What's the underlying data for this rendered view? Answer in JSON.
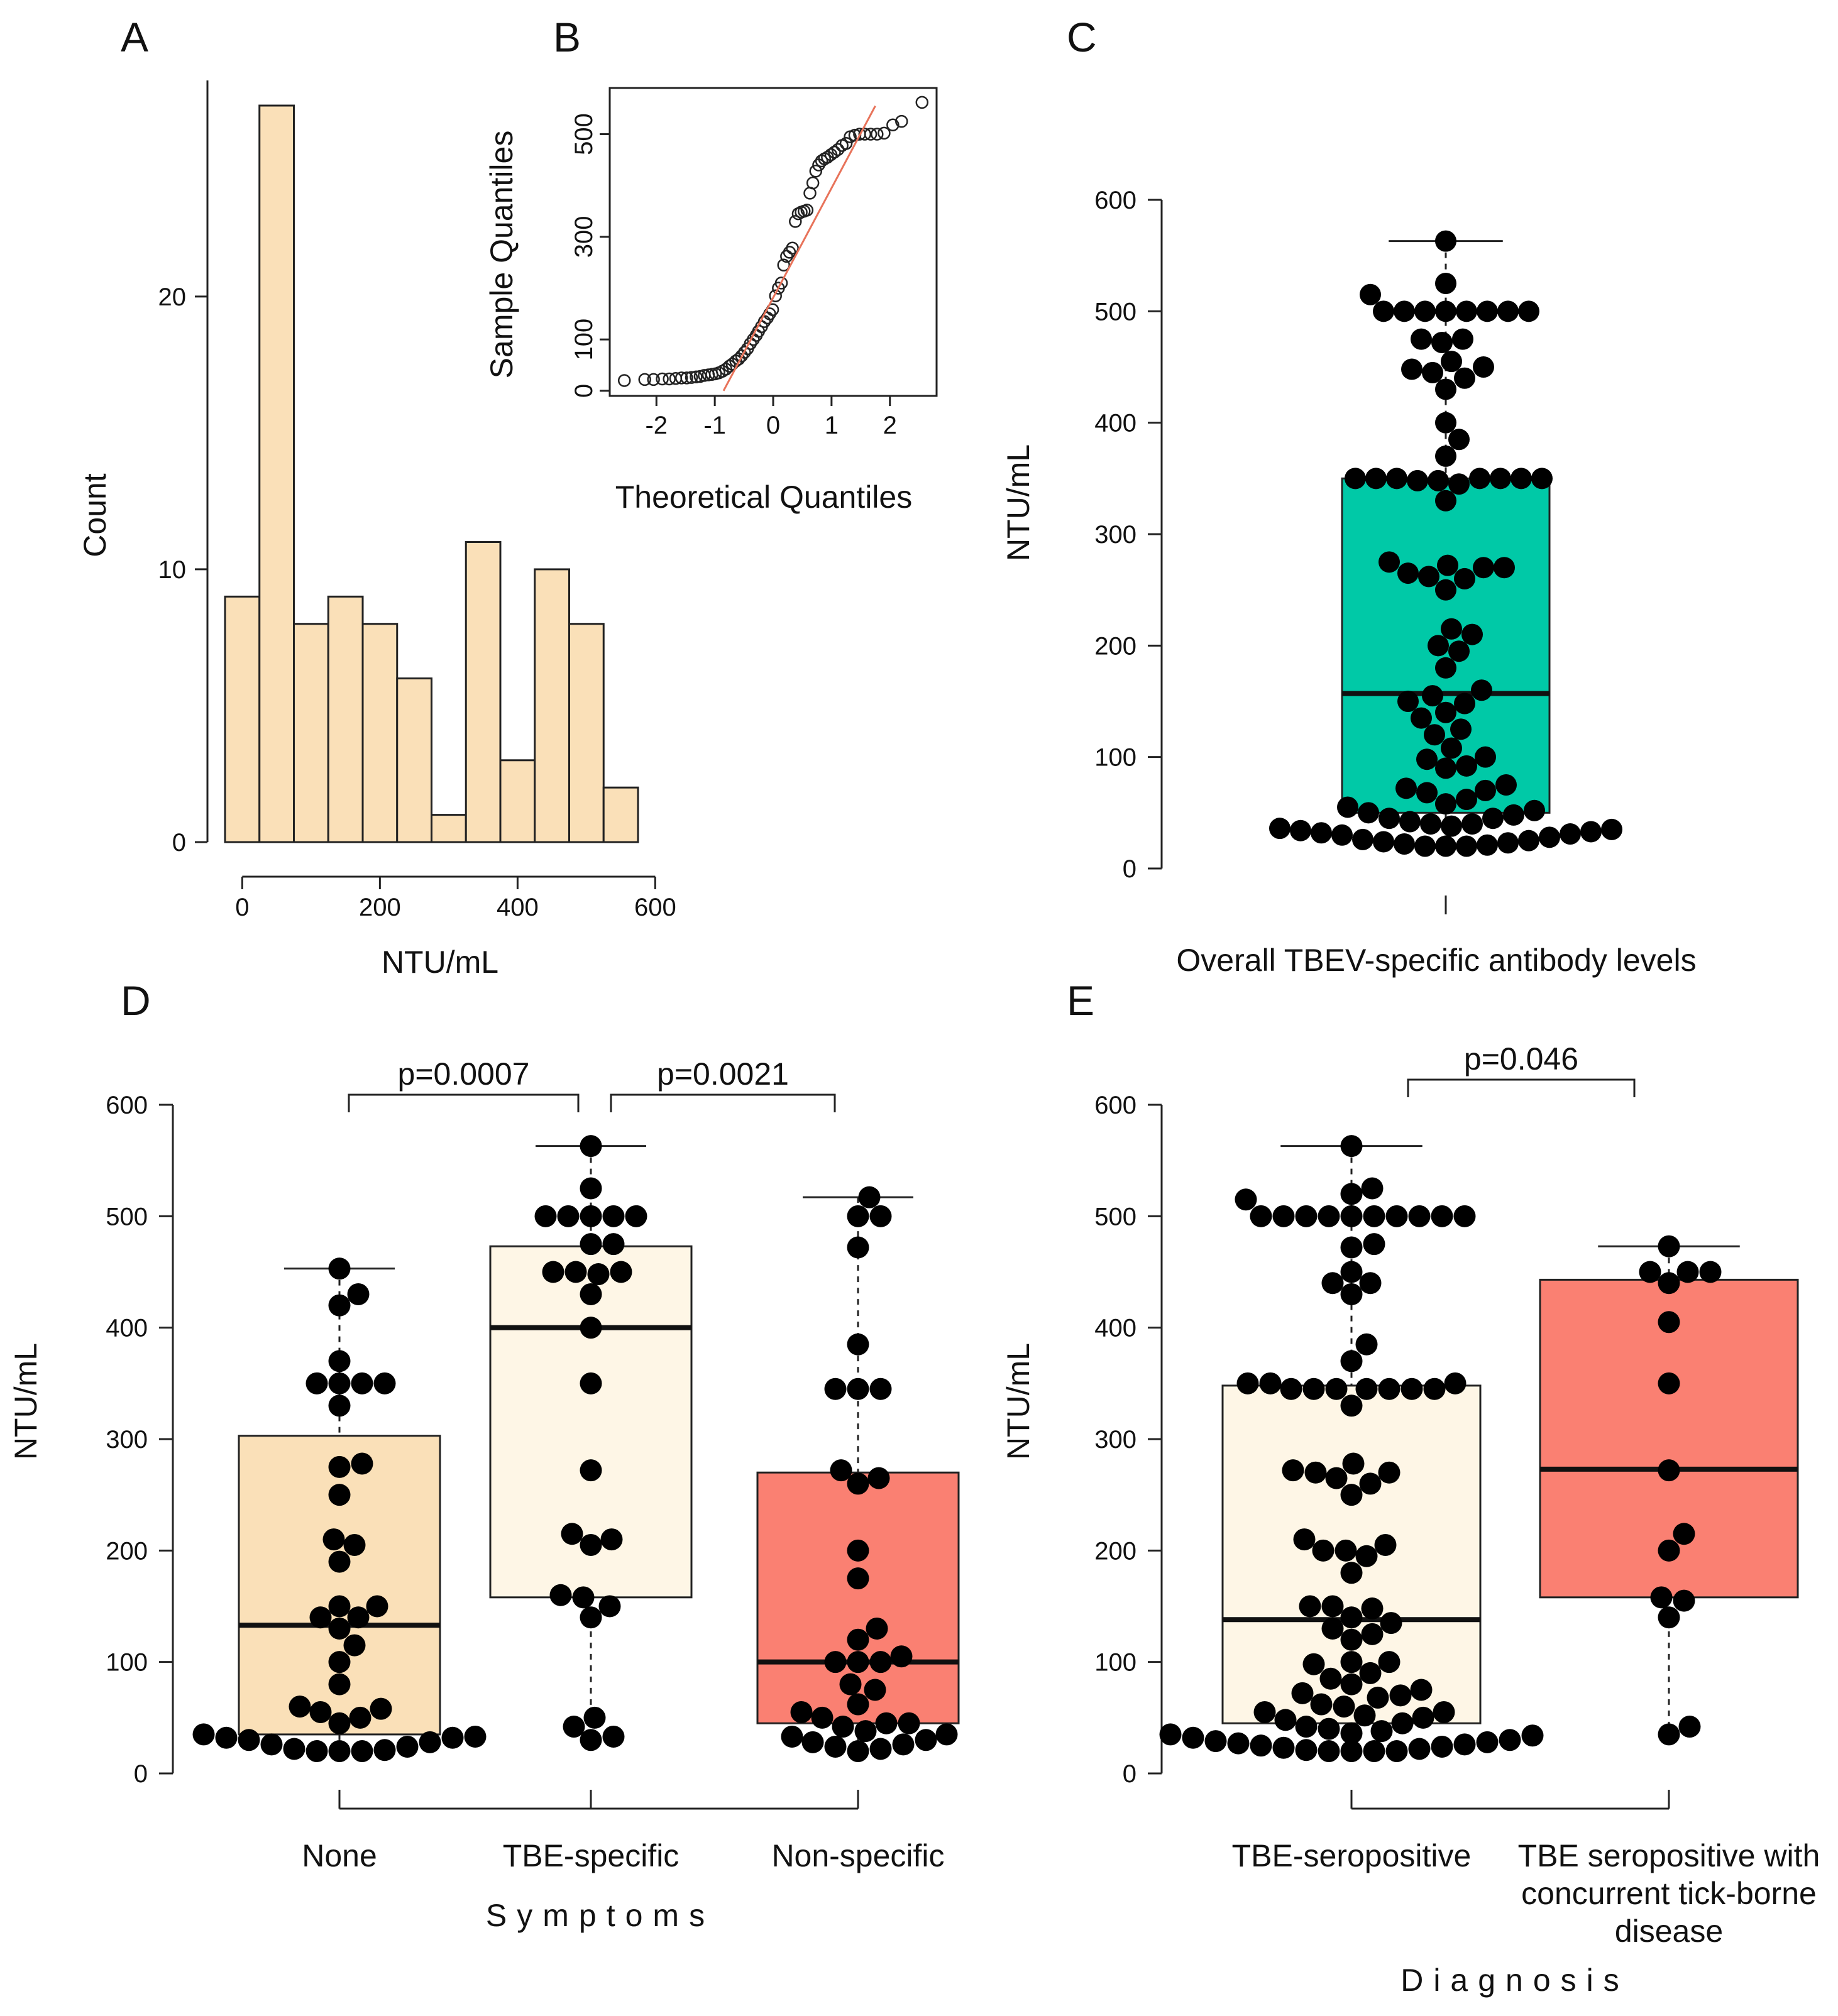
{
  "chart_data": [
    {
      "panel": "A",
      "type": "bar",
      "subtype": "histogram",
      "xlabel": "NTU/mL",
      "ylabel": "Count",
      "xlim": [
        -25,
        575
      ],
      "ylim": [
        0,
        27
      ],
      "xticks": [
        0,
        200,
        400,
        600
      ],
      "yticks": [
        0,
        10,
        20
      ],
      "bin_edges": [
        -25,
        25,
        75,
        125,
        175,
        225,
        275,
        325,
        375,
        425,
        475,
        525,
        575
      ],
      "values": [
        9,
        27,
        8,
        9,
        8,
        6,
        1,
        11,
        3,
        10,
        8,
        2
      ],
      "colors": {
        "fill": "#FAE0B8",
        "stroke": "#222222"
      }
    },
    {
      "panel": "B",
      "type": "scatter",
      "subtype": "qq-plot",
      "xlabel": "Theoretical Quantiles",
      "ylabel": "Sample Quantiles",
      "xlim": [
        -2.8,
        2.8
      ],
      "ylim": [
        -10,
        590
      ],
      "xticks": [
        -2,
        -1,
        0,
        1,
        2
      ],
      "yticks": [
        0,
        100,
        300,
        500
      ],
      "reference_line": {
        "x": [
          -0.85,
          1.75
        ],
        "y": [
          0,
          555
        ]
      },
      "points": [
        [
          -2.55,
          20
        ],
        [
          -2.2,
          22
        ],
        [
          -2.05,
          22
        ],
        [
          -1.9,
          23
        ],
        [
          -1.78,
          23
        ],
        [
          -1.67,
          24
        ],
        [
          -1.57,
          25
        ],
        [
          -1.48,
          25
        ],
        [
          -1.4,
          26
        ],
        [
          -1.32,
          27
        ],
        [
          -1.25,
          28
        ],
        [
          -1.18,
          30
        ],
        [
          -1.11,
          31
        ],
        [
          -1.05,
          32
        ],
        [
          -0.99,
          33
        ],
        [
          -0.93,
          35
        ],
        [
          -0.87,
          38
        ],
        [
          -0.81,
          42
        ],
        [
          -0.75,
          48
        ],
        [
          -0.7,
          52
        ],
        [
          -0.64,
          58
        ],
        [
          -0.59,
          62
        ],
        [
          -0.54,
          68
        ],
        [
          -0.49,
          75
        ],
        [
          -0.44,
          82
        ],
        [
          -0.39,
          92
        ],
        [
          -0.34,
          100
        ],
        [
          -0.29,
          108
        ],
        [
          -0.25,
          116
        ],
        [
          -0.2,
          125
        ],
        [
          -0.15,
          135
        ],
        [
          -0.1,
          142
        ],
        [
          -0.06,
          150
        ],
        [
          -0.01,
          158
        ],
        [
          0.04,
          185
        ],
        [
          0.09,
          200
        ],
        [
          0.14,
          210
        ],
        [
          0.18,
          245
        ],
        [
          0.23,
          262
        ],
        [
          0.28,
          270
        ],
        [
          0.33,
          278
        ],
        [
          0.38,
          330
        ],
        [
          0.43,
          345
        ],
        [
          0.48,
          348
        ],
        [
          0.53,
          350
        ],
        [
          0.58,
          352
        ],
        [
          0.63,
          385
        ],
        [
          0.68,
          405
        ],
        [
          0.73,
          428
        ],
        [
          0.78,
          440
        ],
        [
          0.83,
          448
        ],
        [
          0.88,
          452
        ],
        [
          0.93,
          455
        ],
        [
          0.99,
          460
        ],
        [
          1.05,
          465
        ],
        [
          1.11,
          470
        ],
        [
          1.18,
          478
        ],
        [
          1.25,
          482
        ],
        [
          1.32,
          495
        ],
        [
          1.4,
          498
        ],
        [
          1.48,
          500
        ],
        [
          1.57,
          500
        ],
        [
          1.67,
          500
        ],
        [
          1.78,
          500
        ],
        [
          1.9,
          502
        ],
        [
          2.05,
          518
        ],
        [
          2.2,
          525
        ],
        [
          2.55,
          562
        ]
      ],
      "colors": {
        "points": "#222222",
        "line": "#E8735A"
      }
    },
    {
      "panel": "C",
      "type": "box",
      "ylabel": "NTU/mL",
      "xlabel": "Overall TBEV-specific antibody levels",
      "ylim": [
        0,
        600
      ],
      "yticks": [
        0,
        100,
        200,
        300,
        400,
        500,
        600
      ],
      "groups": [
        {
          "name": "Overall TBEV-specific antibody levels",
          "box": {
            "q1": 50,
            "median": 157,
            "q3": 350,
            "whisker_low": 20,
            "whisker_high": 563
          },
          "fill": "#00C9A7",
          "points": [
            563,
            525,
            515,
            500,
            500,
            500,
            500,
            500,
            500,
            500,
            500,
            475,
            475,
            472,
            455,
            450,
            448,
            445,
            440,
            430,
            400,
            385,
            370,
            350,
            350,
            350,
            350,
            350,
            350,
            350,
            348,
            348,
            345,
            330,
            275,
            272,
            270,
            270,
            265,
            262,
            260,
            250,
            215,
            210,
            200,
            195,
            180,
            160,
            155,
            150,
            148,
            140,
            135,
            125,
            120,
            108,
            100,
            98,
            92,
            90,
            75,
            72,
            70,
            68,
            62,
            58,
            55,
            52,
            50,
            48,
            45,
            45,
            42,
            40,
            40,
            38,
            36,
            35,
            34,
            33,
            32,
            31,
            30,
            28,
            26,
            25,
            24,
            23,
            22,
            21,
            20,
            20,
            20
          ]
        }
      ]
    },
    {
      "panel": "D",
      "type": "box",
      "ylabel": "NTU/mL",
      "xlabel": "Symptoms",
      "ylim": [
        0,
        600
      ],
      "yticks": [
        0,
        100,
        200,
        300,
        400,
        500,
        600
      ],
      "comparisons": [
        {
          "from": "None",
          "to": "TBE-specific",
          "label": "p=0.0007"
        },
        {
          "from": "TBE-specific",
          "to": "Non-specific",
          "label": "p=0.0021"
        }
      ],
      "groups": [
        {
          "name": "None",
          "box": {
            "q1": 35,
            "median": 133,
            "q3": 303,
            "whisker_low": 20,
            "whisker_high": 453
          },
          "fill": "#FAE0B8",
          "points": [
            453,
            430,
            420,
            370,
            350,
            350,
            350,
            350,
            330,
            278,
            275,
            250,
            210,
            205,
            190,
            150,
            150,
            140,
            140,
            130,
            115,
            100,
            80,
            60,
            58,
            55,
            50,
            45,
            35,
            33,
            32,
            32,
            30,
            28,
            26,
            24,
            22,
            21,
            20,
            20,
            20
          ]
        },
        {
          "name": "TBE-specific",
          "box": {
            "q1": 158,
            "median": 400,
            "q3": 473,
            "whisker_low": 30,
            "whisker_high": 563
          },
          "fill": "#FEF6E6",
          "points": [
            563,
            525,
            500,
            500,
            500,
            500,
            500,
            475,
            475,
            450,
            450,
            450,
            448,
            430,
            400,
            350,
            272,
            215,
            210,
            205,
            160,
            158,
            150,
            140,
            50,
            42,
            33,
            30
          ]
        },
        {
          "name": "Non-specific",
          "box": {
            "q1": 45,
            "median": 100,
            "q3": 270,
            "whisker_low": 20,
            "whisker_high": 517
          },
          "fill": "#FA8072",
          "points": [
            517,
            500,
            500,
            472,
            385,
            345,
            345,
            345,
            272,
            265,
            260,
            200,
            175,
            130,
            120,
            105,
            100,
            100,
            100,
            80,
            75,
            62,
            55,
            50,
            45,
            45,
            42,
            38,
            35,
            33,
            30,
            28,
            26,
            24,
            22,
            20
          ]
        }
      ]
    },
    {
      "panel": "E",
      "type": "box",
      "ylabel": "NTU/mL",
      "xlabel": "Diagnosis",
      "ylim": [
        0,
        600
      ],
      "yticks": [
        0,
        100,
        200,
        300,
        400,
        500,
        600
      ],
      "comparisons": [
        {
          "from": "TBE-seropositive",
          "to": "TBE seropositive with concurrent tick-borne disease",
          "label": "p=0.046"
        }
      ],
      "groups": [
        {
          "name": "TBE-seropositive",
          "box": {
            "q1": 45,
            "median": 138,
            "q3": 348,
            "whisker_low": 20,
            "whisker_high": 563
          },
          "fill": "#FEF6E6",
          "points": [
            563,
            525,
            520,
            515,
            500,
            500,
            500,
            500,
            500,
            500,
            500,
            500,
            500,
            500,
            475,
            472,
            450,
            440,
            440,
            430,
            385,
            370,
            350,
            350,
            350,
            345,
            345,
            345,
            345,
            345,
            345,
            345,
            330,
            278,
            272,
            270,
            270,
            265,
            260,
            250,
            210,
            205,
            200,
            200,
            195,
            180,
            150,
            150,
            148,
            140,
            135,
            130,
            125,
            120,
            100,
            100,
            98,
            90,
            85,
            80,
            75,
            72,
            70,
            68,
            62,
            60,
            55,
            55,
            52,
            50,
            48,
            45,
            42,
            40,
            38,
            36,
            35,
            34,
            32,
            30,
            29,
            28,
            27,
            26,
            25,
            24,
            23,
            22,
            21,
            20,
            20,
            20,
            20
          ]
        },
        {
          "name": "TBE seropositive with concurrent tick-borne disease",
          "box": {
            "q1": 158,
            "median": 273,
            "q3": 443,
            "whisker_low": 33,
            "whisker_high": 473
          },
          "fill": "#FA8072",
          "points": [
            473,
            450,
            450,
            450,
            440,
            405,
            350,
            272,
            215,
            200,
            158,
            155,
            140,
            42,
            35
          ]
        }
      ]
    }
  ],
  "panels": {
    "A": {
      "label": "A"
    },
    "B": {
      "label": "B"
    },
    "C": {
      "label": "C"
    },
    "D": {
      "label": "D"
    },
    "E": {
      "label": "E"
    }
  },
  "text": {
    "E_group2_line1": "TBE seropositive with",
    "E_group2_line2": "concurrent tick-borne",
    "E_group2_line3": "disease"
  }
}
